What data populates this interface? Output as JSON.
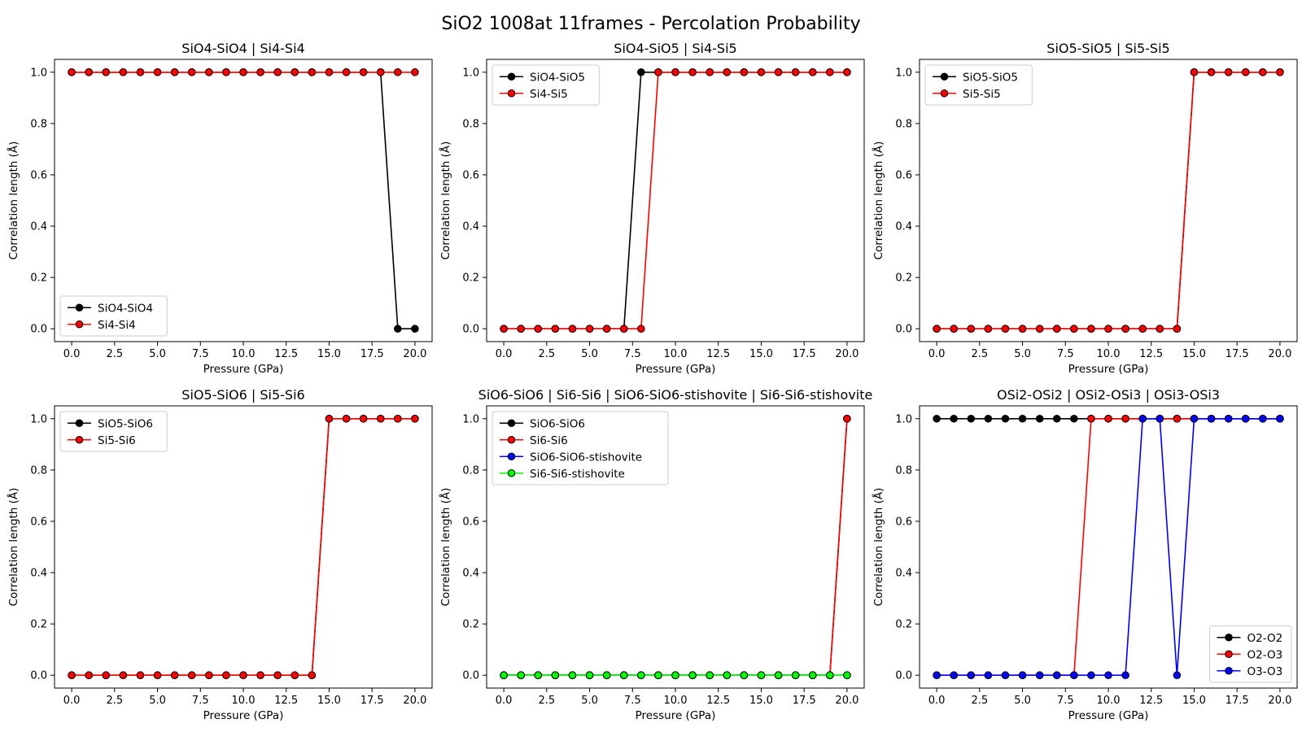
{
  "figure": {
    "title": "SiO2 1008at 11frames - Percolation Probability"
  },
  "chart_data": [
    {
      "type": "line",
      "title": "SiO4-SiO4 | Si4-Si4",
      "xlabel": "Pressure (GPa)",
      "ylabel": "Correlation length (Å)",
      "xlim": [
        -1,
        21
      ],
      "ylim": [
        -0.05,
        1.05
      ],
      "xticks": [
        "0.0",
        "2.5",
        "5.0",
        "7.5",
        "10.0",
        "12.5",
        "15.0",
        "17.5",
        "20.0"
      ],
      "yticks": [
        "0.0",
        "0.2",
        "0.4",
        "0.6",
        "0.8",
        "1.0"
      ],
      "legend_position": "lower left",
      "x": [
        0,
        1,
        2,
        3,
        4,
        5,
        6,
        7,
        8,
        9,
        10,
        11,
        12,
        13,
        14,
        15,
        16,
        17,
        18,
        19,
        20
      ],
      "series": [
        {
          "name": "SiO4-SiO4",
          "color": "#000000",
          "values": [
            1,
            1,
            1,
            1,
            1,
            1,
            1,
            1,
            1,
            1,
            1,
            1,
            1,
            1,
            1,
            1,
            1,
            1,
            1,
            0,
            0
          ]
        },
        {
          "name": "Si4-Si4",
          "color": "#ff0000",
          "values": [
            1,
            1,
            1,
            1,
            1,
            1,
            1,
            1,
            1,
            1,
            1,
            1,
            1,
            1,
            1,
            1,
            1,
            1,
            1,
            1,
            1
          ]
        }
      ]
    },
    {
      "type": "line",
      "title": "SiO4-SiO5 | Si4-Si5",
      "xlabel": "Pressure (GPa)",
      "ylabel": "Correlation length (Å)",
      "xlim": [
        -1,
        21
      ],
      "ylim": [
        -0.05,
        1.05
      ],
      "xticks": [
        "0.0",
        "2.5",
        "5.0",
        "7.5",
        "10.0",
        "12.5",
        "15.0",
        "17.5",
        "20.0"
      ],
      "yticks": [
        "0.0",
        "0.2",
        "0.4",
        "0.6",
        "0.8",
        "1.0"
      ],
      "legend_position": "upper left",
      "x": [
        0,
        1,
        2,
        3,
        4,
        5,
        6,
        7,
        8,
        9,
        10,
        11,
        12,
        13,
        14,
        15,
        16,
        17,
        18,
        19,
        20
      ],
      "series": [
        {
          "name": "SiO4-SiO5",
          "color": "#000000",
          "values": [
            0,
            0,
            0,
            0,
            0,
            0,
            0,
            0,
            1,
            1,
            1,
            1,
            1,
            1,
            1,
            1,
            1,
            1,
            1,
            1,
            1
          ]
        },
        {
          "name": "Si4-Si5",
          "color": "#ff0000",
          "values": [
            0,
            0,
            0,
            0,
            0,
            0,
            0,
            0,
            0,
            1,
            1,
            1,
            1,
            1,
            1,
            1,
            1,
            1,
            1,
            1,
            1
          ]
        }
      ]
    },
    {
      "type": "line",
      "title": "SiO5-SiO5 | Si5-Si5",
      "xlabel": "Pressure (GPa)",
      "ylabel": "Correlation length (Å)",
      "xlim": [
        -1,
        21
      ],
      "ylim": [
        -0.05,
        1.05
      ],
      "xticks": [
        "0.0",
        "2.5",
        "5.0",
        "7.5",
        "10.0",
        "12.5",
        "15.0",
        "17.5",
        "20.0"
      ],
      "yticks": [
        "0.0",
        "0.2",
        "0.4",
        "0.6",
        "0.8",
        "1.0"
      ],
      "legend_position": "upper left",
      "x": [
        0,
        1,
        2,
        3,
        4,
        5,
        6,
        7,
        8,
        9,
        10,
        11,
        12,
        13,
        14,
        15,
        16,
        17,
        18,
        19,
        20
      ],
      "series": [
        {
          "name": "SiO5-SiO5",
          "color": "#000000",
          "values": [
            0,
            0,
            0,
            0,
            0,
            0,
            0,
            0,
            0,
            0,
            0,
            0,
            0,
            0,
            0,
            1,
            1,
            1,
            1,
            1,
            1
          ]
        },
        {
          "name": "Si5-Si5",
          "color": "#ff0000",
          "values": [
            0,
            0,
            0,
            0,
            0,
            0,
            0,
            0,
            0,
            0,
            0,
            0,
            0,
            0,
            0,
            1,
            1,
            1,
            1,
            1,
            1
          ]
        }
      ]
    },
    {
      "type": "line",
      "title": "SiO5-SiO6 | Si5-Si6",
      "xlabel": "Pressure (GPa)",
      "ylabel": "Correlation length (Å)",
      "xlim": [
        -1,
        21
      ],
      "ylim": [
        -0.05,
        1.05
      ],
      "xticks": [
        "0.0",
        "2.5",
        "5.0",
        "7.5",
        "10.0",
        "12.5",
        "15.0",
        "17.5",
        "20.0"
      ],
      "yticks": [
        "0.0",
        "0.2",
        "0.4",
        "0.6",
        "0.8",
        "1.0"
      ],
      "legend_position": "upper left",
      "x": [
        0,
        1,
        2,
        3,
        4,
        5,
        6,
        7,
        8,
        9,
        10,
        11,
        12,
        13,
        14,
        15,
        16,
        17,
        18,
        19,
        20
      ],
      "series": [
        {
          "name": "SiO5-SiO6",
          "color": "#000000",
          "values": [
            0,
            0,
            0,
            0,
            0,
            0,
            0,
            0,
            0,
            0,
            0,
            0,
            0,
            0,
            0,
            1,
            1,
            1,
            1,
            1,
            1
          ]
        },
        {
          "name": "Si5-Si6",
          "color": "#ff0000",
          "values": [
            0,
            0,
            0,
            0,
            0,
            0,
            0,
            0,
            0,
            0,
            0,
            0,
            0,
            0,
            0,
            1,
            1,
            1,
            1,
            1,
            1
          ]
        }
      ]
    },
    {
      "type": "line",
      "title": "SiO6-SiO6 | Si6-Si6 | SiO6-SiO6-stishovite | Si6-Si6-stishovite",
      "xlabel": "Pressure (GPa)",
      "ylabel": "Correlation length (Å)",
      "xlim": [
        -1,
        21
      ],
      "ylim": [
        -0.05,
        1.05
      ],
      "xticks": [
        "0.0",
        "2.5",
        "5.0",
        "7.5",
        "10.0",
        "12.5",
        "15.0",
        "17.5",
        "20.0"
      ],
      "yticks": [
        "0.0",
        "0.2",
        "0.4",
        "0.6",
        "0.8",
        "1.0"
      ],
      "legend_position": "upper left",
      "x": [
        0,
        1,
        2,
        3,
        4,
        5,
        6,
        7,
        8,
        9,
        10,
        11,
        12,
        13,
        14,
        15,
        16,
        17,
        18,
        19,
        20
      ],
      "series": [
        {
          "name": "SiO6-SiO6",
          "color": "#000000",
          "values": [
            0,
            0,
            0,
            0,
            0,
            0,
            0,
            0,
            0,
            0,
            0,
            0,
            0,
            0,
            0,
            0,
            0,
            0,
            0,
            0,
            1
          ]
        },
        {
          "name": "Si6-Si6",
          "color": "#ff0000",
          "values": [
            0,
            0,
            0,
            0,
            0,
            0,
            0,
            0,
            0,
            0,
            0,
            0,
            0,
            0,
            0,
            0,
            0,
            0,
            0,
            0,
            1
          ]
        },
        {
          "name": "SiO6-SiO6-stishovite",
          "color": "#0000ff",
          "values": [
            0,
            0,
            0,
            0,
            0,
            0,
            0,
            0,
            0,
            0,
            0,
            0,
            0,
            0,
            0,
            0,
            0,
            0,
            0,
            0,
            0
          ]
        },
        {
          "name": "Si6-Si6-stishovite",
          "color": "#00ff00",
          "values": [
            0,
            0,
            0,
            0,
            0,
            0,
            0,
            0,
            0,
            0,
            0,
            0,
            0,
            0,
            0,
            0,
            0,
            0,
            0,
            0,
            0
          ]
        }
      ]
    },
    {
      "type": "line",
      "title": "OSi2-OSi2 | OSi2-OSi3 | OSi3-OSi3",
      "xlabel": "Pressure (GPa)",
      "ylabel": "Correlation length (Å)",
      "xlim": [
        -1,
        21
      ],
      "ylim": [
        -0.05,
        1.05
      ],
      "xticks": [
        "0.0",
        "2.5",
        "5.0",
        "7.5",
        "10.0",
        "12.5",
        "15.0",
        "17.5",
        "20.0"
      ],
      "yticks": [
        "0.0",
        "0.2",
        "0.4",
        "0.6",
        "0.8",
        "1.0"
      ],
      "legend_position": "lower right",
      "x": [
        0,
        1,
        2,
        3,
        4,
        5,
        6,
        7,
        8,
        9,
        10,
        11,
        12,
        13,
        14,
        15,
        16,
        17,
        18,
        19,
        20
      ],
      "series": [
        {
          "name": "O2-O2",
          "color": "#000000",
          "values": [
            1,
            1,
            1,
            1,
            1,
            1,
            1,
            1,
            1,
            1,
            1,
            1,
            1,
            1,
            1,
            1,
            1,
            1,
            1,
            1,
            1
          ]
        },
        {
          "name": "O2-O3",
          "color": "#ff0000",
          "values": [
            0,
            0,
            0,
            0,
            0,
            0,
            0,
            0,
            0,
            1,
            1,
            1,
            1,
            1,
            1,
            1,
            1,
            1,
            1,
            1,
            1
          ]
        },
        {
          "name": "O3-O3",
          "color": "#0000ff",
          "values": [
            0,
            0,
            0,
            0,
            0,
            0,
            0,
            0,
            0,
            0,
            0,
            0,
            1,
            1,
            0,
            1,
            1,
            1,
            1,
            1,
            1
          ]
        }
      ]
    }
  ]
}
